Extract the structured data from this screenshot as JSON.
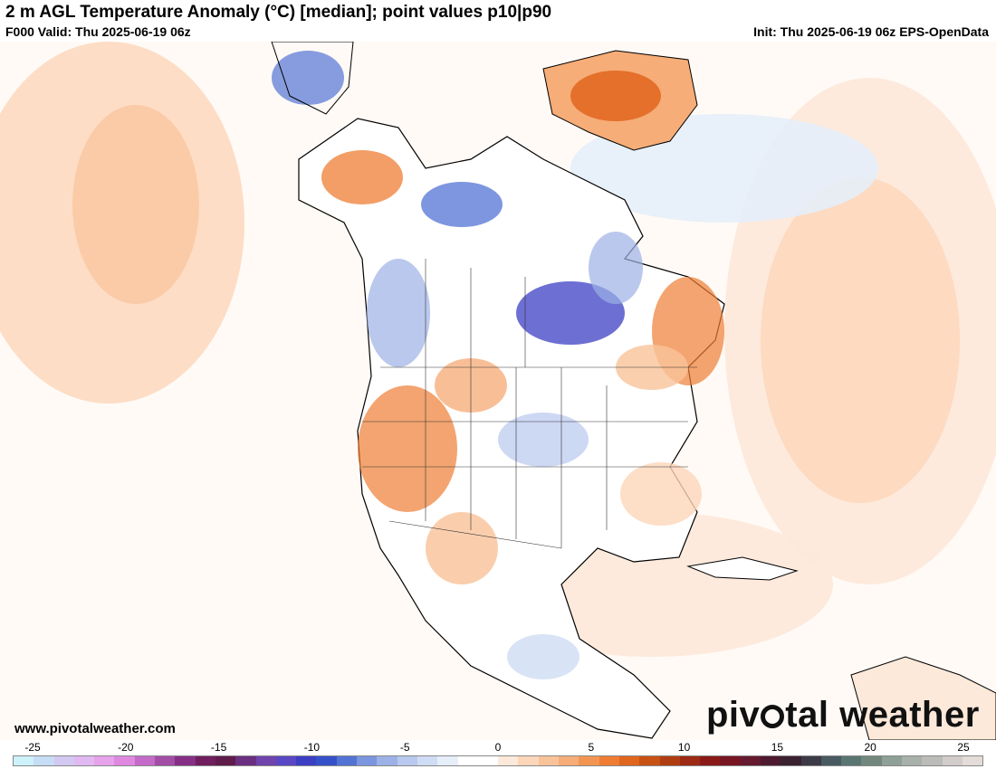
{
  "header": {
    "title": "2 m AGL Temperature Anomaly (°C) [median]; point values p10|p90",
    "valid": "F000 Valid: Thu 2025-06-19 06z",
    "init": "Init: Thu 2025-06-19 06z EPS-OpenData"
  },
  "footer": {
    "url": "www.pivotalweather.com",
    "brand_left": "piv",
    "brand_right": "tal weather"
  },
  "legend": {
    "ticks": [
      "-25",
      "-20",
      "-15",
      "-10",
      "-5",
      "0",
      "5",
      "10",
      "15",
      "20",
      "25"
    ],
    "colors": [
      "#cdf2fa",
      "#c6ddf5",
      "#d3c8f2",
      "#e2b8f2",
      "#e7a2ec",
      "#df88df",
      "#c56ac8",
      "#a24da6",
      "#862f86",
      "#701e5e",
      "#5f1c4a",
      "#6a2f80",
      "#7043ad",
      "#5947c4",
      "#3c3fc4",
      "#3551c9",
      "#5373d4",
      "#7b95de",
      "#9cb1e6",
      "#b8c8ee",
      "#d0dcf4",
      "#e6eefa",
      "#ffffff",
      "#ffffff",
      "#fde9da",
      "#fcd6b9",
      "#f9c39a",
      "#f6ad77",
      "#f39552",
      "#ee7d33",
      "#e0651d",
      "#c85214",
      "#b03d12",
      "#9c2a14",
      "#8a1a18",
      "#771522",
      "#651a2f",
      "#4d1a2f",
      "#3a2230",
      "#3c3a46",
      "#485a62",
      "#5a7672",
      "#72887f",
      "#8ea097",
      "#a7b0aa",
      "#bbbcba",
      "#d2cdcb",
      "#e4dcd8"
    ],
    "accent_warm": "#f9c39a",
    "accent_cold": "#3c3fc4"
  }
}
